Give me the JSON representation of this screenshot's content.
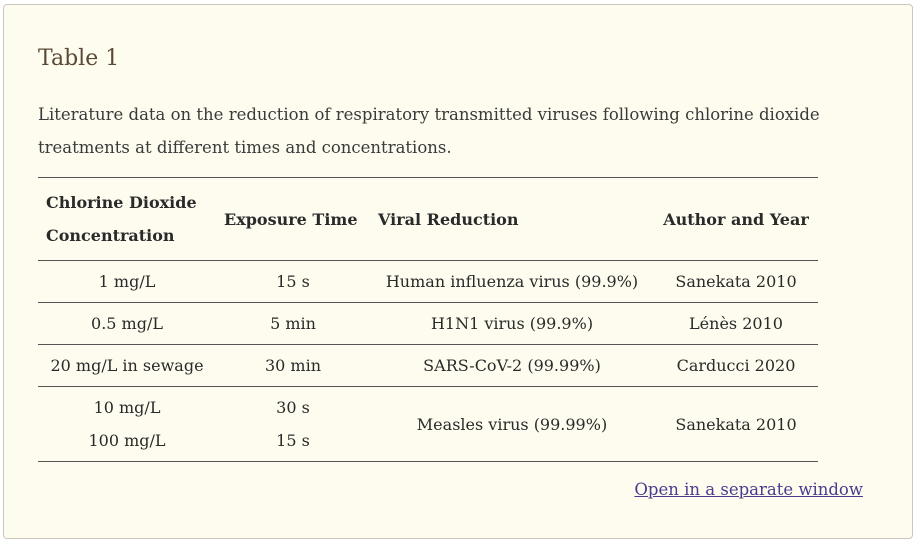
{
  "title": "Table 1",
  "caption": "Literature data on the reduction of respiratory transmitted viruses following chlorine dioxide treatments at different times and concentrations.",
  "columns": [
    "Chlorine Dioxide Concentration",
    "Exposure Time",
    "Viral Reduction",
    "Author and Year"
  ],
  "rows": [
    {
      "concentration": [
        "1 mg/L"
      ],
      "time": [
        "15 s"
      ],
      "reduction": "Human influenza virus (99.9%)",
      "author": "Sanekata 2010"
    },
    {
      "concentration": [
        "0.5 mg/L"
      ],
      "time": [
        "5 min"
      ],
      "reduction": "H1N1 virus (99.9%)",
      "author": "Lénès 2010"
    },
    {
      "concentration": [
        "20 mg/L in sewage"
      ],
      "time": [
        "30 min"
      ],
      "reduction": "SARS-CoV-2 (99.99%)",
      "author": "Carducci 2020"
    },
    {
      "concentration": [
        "10 mg/L",
        "100 mg/L"
      ],
      "time": [
        "30 s",
        "15 s"
      ],
      "reduction": "Measles virus (99.99%)",
      "author": "Sanekata 2010"
    }
  ],
  "link_label": "Open in a separate window"
}
